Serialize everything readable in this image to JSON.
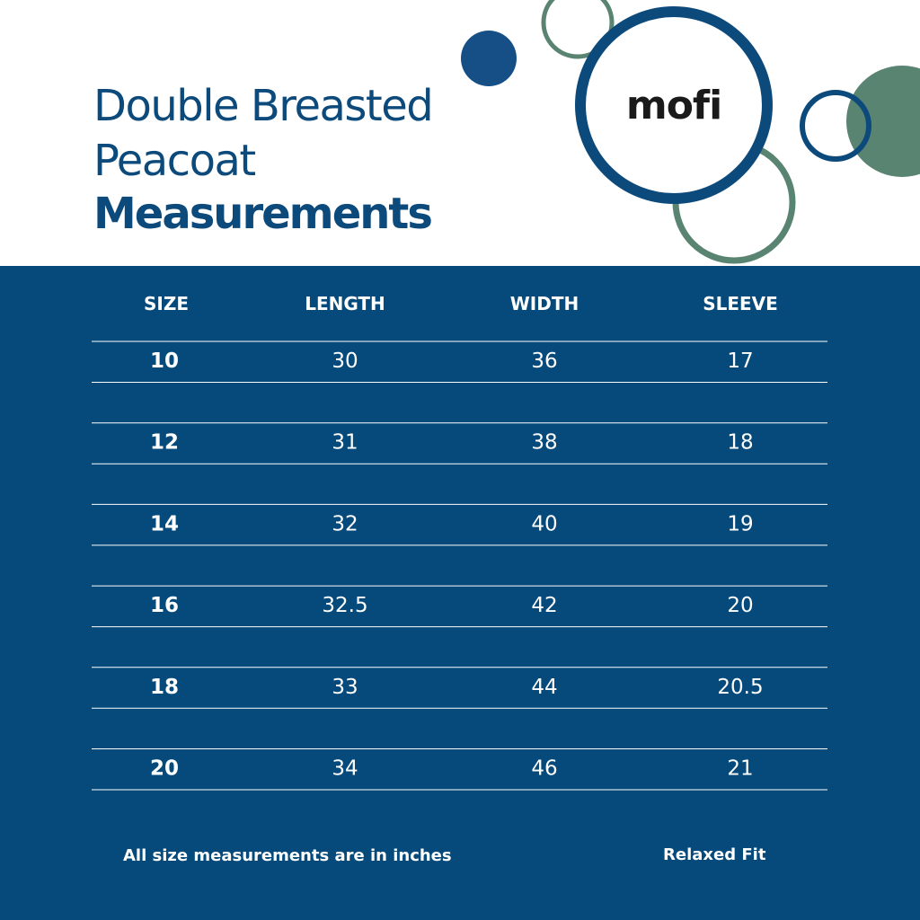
{
  "header": {
    "title_lines": [
      "Double Breasted",
      "Peacoat"
    ],
    "title_bold": "Measurements",
    "logo": "mofi"
  },
  "table": {
    "columns": [
      "SIZE",
      "LENGTH",
      "WIDTH",
      "SLEEVE"
    ],
    "rows": [
      [
        "10",
        "30",
        "36",
        "17"
      ],
      [
        "12",
        "31",
        "38",
        "18"
      ],
      [
        "14",
        "32",
        "40",
        "19"
      ],
      [
        "16",
        "32.5",
        "42",
        "20"
      ],
      [
        "18",
        "33",
        "44",
        "20.5"
      ],
      [
        "20",
        "34",
        "46",
        "21"
      ]
    ]
  },
  "footer": {
    "note": "All size measurements are in inches",
    "fit": "Relaxed Fit"
  }
}
